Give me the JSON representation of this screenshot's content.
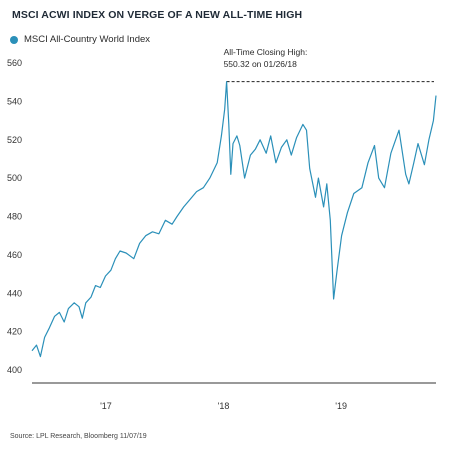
{
  "title": "MSCI ACWI INDEX ON VERGE OF A NEW ALL-TIME HIGH",
  "legend": {
    "label": "MSCI All-Country World Index",
    "color": "#2b90b9"
  },
  "annotation": {
    "line1": "All-Time Closing High:",
    "line2": "550.32 on 01/26/18"
  },
  "source": "Source: LPL Research, Bloomberg 11/07/19",
  "chart_data": {
    "type": "line",
    "title": "MSCI ACWI INDEX ON VERGE OF A NEW ALL-TIME HIGH",
    "xlabel": "",
    "ylabel": "",
    "ylim": [
      400,
      560
    ],
    "xlim": [
      "2016-06-01",
      "2019-11-07"
    ],
    "yticks": [
      400,
      420,
      440,
      460,
      480,
      500,
      520,
      540,
      560
    ],
    "xticks": [
      {
        "x": "2017-01-01",
        "label": "'17"
      },
      {
        "x": "2018-01-01",
        "label": "'18"
      },
      {
        "x": "2019-01-01",
        "label": "'19"
      }
    ],
    "grid": false,
    "legend_position": "top-left",
    "reference_line": {
      "y": 550.32,
      "style": "dashed",
      "from": "2018-01-26"
    },
    "series": [
      {
        "name": "MSCI All-Country World Index",
        "color": "#2b90b9",
        "points": [
          [
            "2016-06-01",
            410
          ],
          [
            "2016-06-15",
            413
          ],
          [
            "2016-06-27",
            407
          ],
          [
            "2016-07-10",
            417
          ],
          [
            "2016-07-25",
            422
          ],
          [
            "2016-08-10",
            428
          ],
          [
            "2016-08-25",
            430
          ],
          [
            "2016-09-09",
            425
          ],
          [
            "2016-09-22",
            432
          ],
          [
            "2016-10-10",
            435
          ],
          [
            "2016-10-25",
            433
          ],
          [
            "2016-11-04",
            427
          ],
          [
            "2016-11-15",
            435
          ],
          [
            "2016-12-01",
            438
          ],
          [
            "2016-12-15",
            444
          ],
          [
            "2016-12-30",
            443
          ],
          [
            "2017-01-15",
            449
          ],
          [
            "2017-02-01",
            452
          ],
          [
            "2017-02-15",
            458
          ],
          [
            "2017-03-01",
            462
          ],
          [
            "2017-03-20",
            461
          ],
          [
            "2017-04-13",
            458
          ],
          [
            "2017-05-01",
            466
          ],
          [
            "2017-05-20",
            470
          ],
          [
            "2017-06-10",
            472
          ],
          [
            "2017-06-30",
            471
          ],
          [
            "2017-07-20",
            478
          ],
          [
            "2017-08-10",
            476
          ],
          [
            "2017-08-25",
            480
          ],
          [
            "2017-09-15",
            485
          ],
          [
            "2017-10-05",
            489
          ],
          [
            "2017-10-25",
            493
          ],
          [
            "2017-11-15",
            495
          ],
          [
            "2017-12-05",
            500
          ],
          [
            "2017-12-28",
            508
          ],
          [
            "2018-01-10",
            522
          ],
          [
            "2018-01-20",
            536
          ],
          [
            "2018-01-26",
            550.32
          ],
          [
            "2018-02-02",
            528
          ],
          [
            "2018-02-08",
            502
          ],
          [
            "2018-02-15",
            518
          ],
          [
            "2018-02-27",
            522
          ],
          [
            "2018-03-08",
            517
          ],
          [
            "2018-03-23",
            500
          ],
          [
            "2018-04-10",
            512
          ],
          [
            "2018-04-25",
            515
          ],
          [
            "2018-05-10",
            520
          ],
          [
            "2018-05-29",
            513
          ],
          [
            "2018-06-12",
            522
          ],
          [
            "2018-06-28",
            508
          ],
          [
            "2018-07-15",
            516
          ],
          [
            "2018-08-01",
            520
          ],
          [
            "2018-08-15",
            512
          ],
          [
            "2018-08-31",
            521
          ],
          [
            "2018-09-20",
            528
          ],
          [
            "2018-10-01",
            525
          ],
          [
            "2018-10-11",
            505
          ],
          [
            "2018-10-29",
            490
          ],
          [
            "2018-11-07",
            500
          ],
          [
            "2018-11-23",
            485
          ],
          [
            "2018-12-03",
            497
          ],
          [
            "2018-12-14",
            478
          ],
          [
            "2018-12-24",
            437
          ],
          [
            "2019-01-04",
            452
          ],
          [
            "2019-01-18",
            470
          ],
          [
            "2019-02-05",
            482
          ],
          [
            "2019-02-25",
            492
          ],
          [
            "2019-03-22",
            495
          ],
          [
            "2019-04-10",
            508
          ],
          [
            "2019-04-30",
            517
          ],
          [
            "2019-05-13",
            500
          ],
          [
            "2019-05-31",
            495
          ],
          [
            "2019-06-20",
            513
          ],
          [
            "2019-07-15",
            525
          ],
          [
            "2019-08-05",
            502
          ],
          [
            "2019-08-15",
            497
          ],
          [
            "2019-08-30",
            508
          ],
          [
            "2019-09-12",
            518
          ],
          [
            "2019-10-02",
            507
          ],
          [
            "2019-10-16",
            520
          ],
          [
            "2019-10-30",
            530
          ],
          [
            "2019-11-07",
            543
          ]
        ]
      }
    ]
  }
}
